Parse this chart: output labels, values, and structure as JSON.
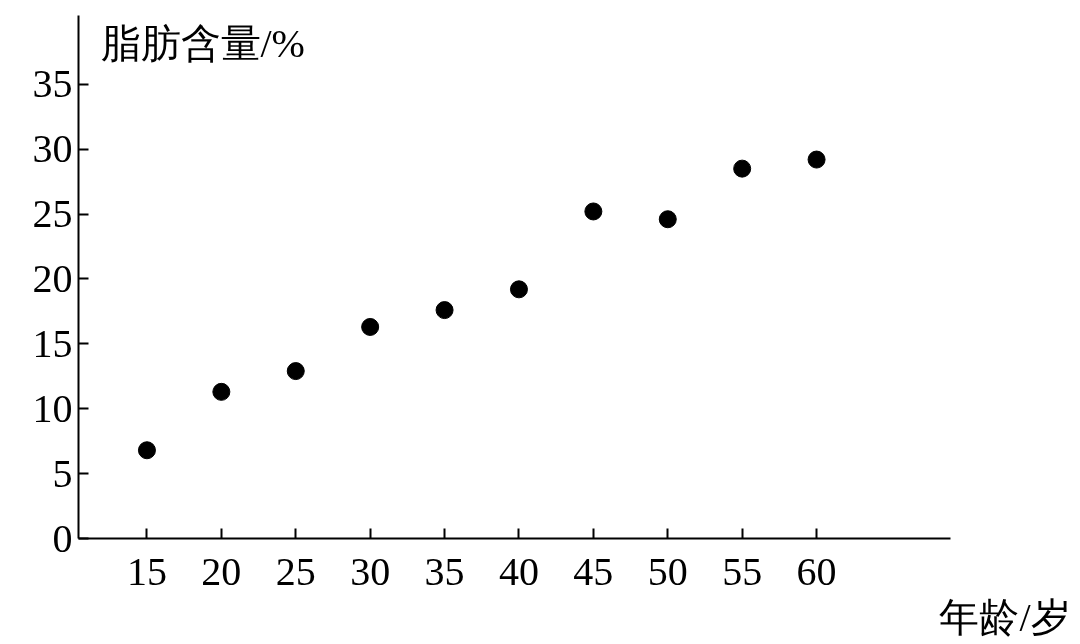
{
  "chart_data": {
    "type": "scatter",
    "xlabel": "年龄/岁",
    "ylabel": "脂肪含量/%",
    "x": [
      15,
      20,
      25,
      30,
      35,
      40,
      45,
      50,
      55,
      60
    ],
    "series": [
      {
        "color": "#000000",
        "values": [
          6.8,
          11.3,
          12.9,
          16.3,
          17.6,
          19.2,
          25.2,
          24.6,
          28.5,
          29.2
        ]
      }
    ],
    "xlim": [
      10.4,
      69
    ],
    "ylim": [
      0,
      40.3
    ],
    "xticks": [
      15,
      20,
      25,
      30,
      35,
      40,
      45,
      50,
      55,
      60
    ],
    "yticks": [
      0,
      5,
      10,
      15,
      20,
      25,
      30,
      35
    ],
    "marker": "circle",
    "grid": false
  }
}
